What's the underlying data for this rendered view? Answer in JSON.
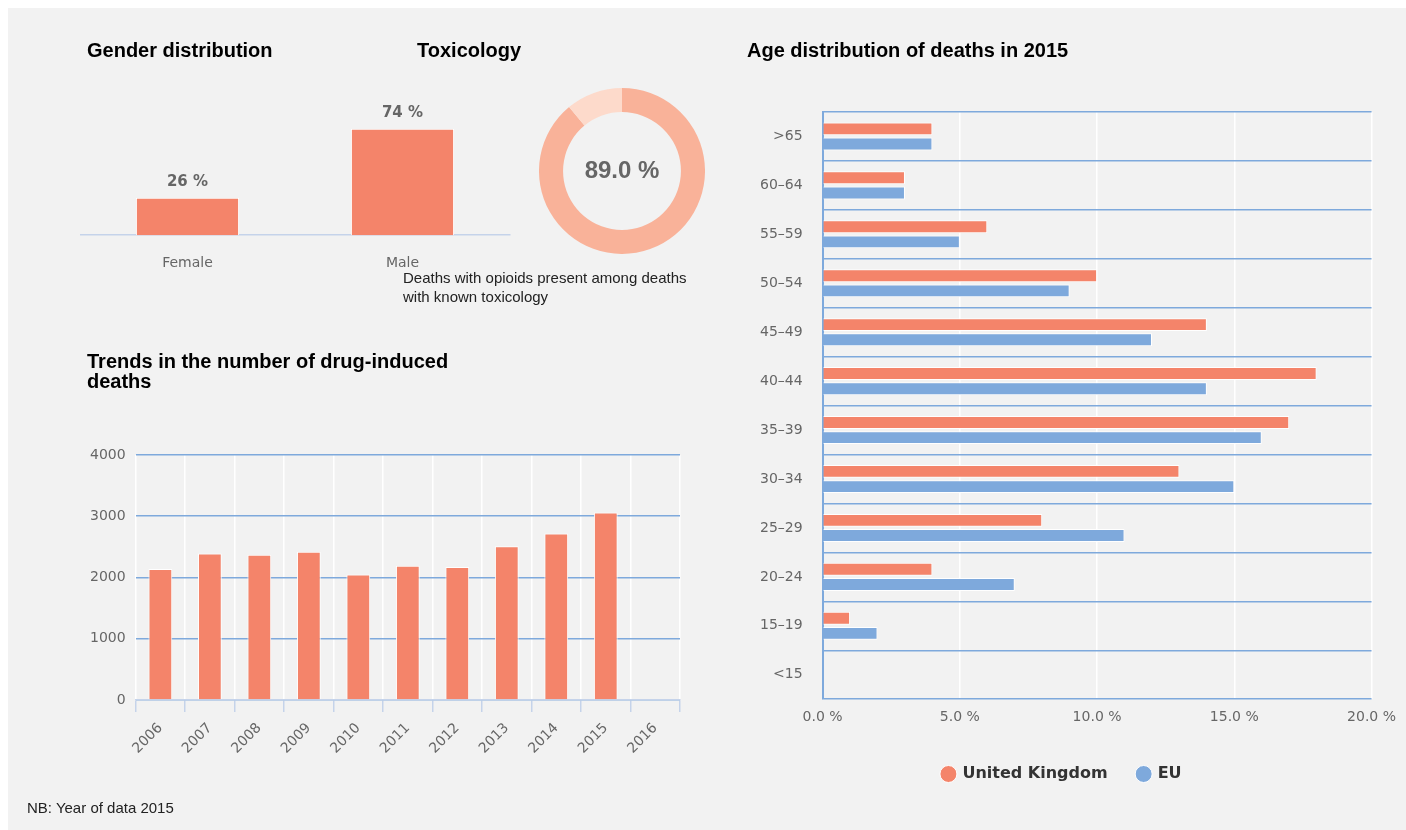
{
  "chart_data": [
    {
      "type": "bar",
      "title": "Gender distribution",
      "categories": [
        "Female",
        "Male"
      ],
      "values": [
        26,
        74
      ],
      "color": "#f4846a",
      "value_labels": [
        "26 %",
        "74 %"
      ],
      "grid": false,
      "tick_labels": "x"
    },
    {
      "type": "donut",
      "title": "Toxicology",
      "categories": [
        null,
        null
      ],
      "values": [
        89.0,
        11.0
      ],
      "colors": [
        "#f9b299",
        "#fddacb"
      ],
      "value_labels": [
        "89.0 %",
        null
      ],
      "annotations": [
        "Deaths with opioids present among deaths with known toxicology"
      ]
    },
    {
      "type": "bar",
      "title": "Trends in the number of drug-induced deaths",
      "categories": [
        "2006",
        "2007",
        "2008",
        "2009",
        "2010",
        "2011",
        "2012",
        "2013",
        "2014",
        "2015",
        "2016"
      ],
      "values": [
        2140,
        2390,
        2370,
        2420,
        2050,
        2190,
        2170,
        2510,
        2720,
        3060,
        null
      ],
      "color": "#f4846a",
      "ylim": [
        0,
        4000
      ],
      "yticks": [
        0,
        1000,
        2000,
        3000,
        4000
      ],
      "grid": true,
      "annotations": [
        "NB: Year of data 2015"
      ]
    },
    {
      "type": "bar",
      "title": "Age distribution of deaths in 2015",
      "orientation": "horizontal",
      "categories": [
        ">65",
        "60–64",
        "55–59",
        "50–54",
        "45–49",
        "40–44",
        "35–39",
        "30–34",
        "25–29",
        "20–24",
        "15–19",
        "<15"
      ],
      "series": [
        {
          "name": "United Kingdom",
          "color": "#f4846a",
          "values": [
            4,
            3,
            6,
            10,
            14,
            18,
            17,
            13,
            8,
            4,
            1,
            0
          ]
        },
        {
          "name": "EU",
          "color": "#7ea9dc",
          "values": [
            4,
            3,
            5,
            9,
            12,
            14,
            16,
            15,
            11,
            7,
            2,
            0
          ]
        }
      ],
      "xlim": [
        0,
        20
      ],
      "xticks": [
        {
          "value": 0,
          "label": "0.0 %"
        },
        {
          "value": 5,
          "label": "5.0 %"
        },
        {
          "value": 10,
          "label": "10.0 %"
        },
        {
          "value": 15,
          "label": "15.0 %"
        },
        {
          "value": 20,
          "label": "20.0 %"
        }
      ],
      "grid": true,
      "legend": "bottom"
    }
  ]
}
